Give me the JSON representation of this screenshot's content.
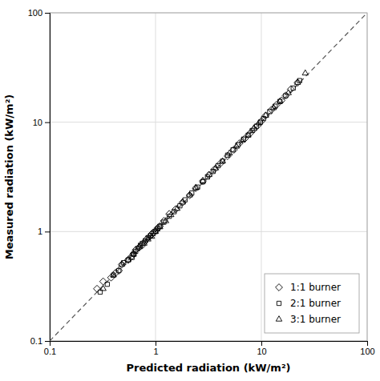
{
  "chart_data": {
    "type": "scatter",
    "xlabel": "Predicted radiation (kW/m²)",
    "ylabel": "Measured radiation (kW/m²)",
    "xlim": [
      0.1,
      100
    ],
    "ylim": [
      0.1,
      100
    ],
    "xticks": [
      0.1,
      1,
      10,
      100
    ],
    "yticks": [
      0.1,
      1,
      10,
      100
    ],
    "log": true,
    "grid": true,
    "legend": "lower right",
    "reference_line": {
      "x": [
        0.1,
        100
      ],
      "y": [
        0.1,
        100
      ],
      "line_style": "dashed",
      "color": "#555555"
    },
    "series": [
      {
        "name": "1:1 burner",
        "color": "black",
        "marker": "diamond",
        "x": [
          0.28,
          0.32,
          0.38,
          0.42,
          0.45,
          0.48,
          0.55,
          0.6,
          0.62,
          0.65,
          0.7,
          0.75,
          0.78,
          0.82,
          0.88,
          0.92,
          0.95,
          1.0,
          1.05,
          1.1,
          1.2,
          1.35,
          1.55,
          1.8,
          2.1,
          2.4,
          2.8,
          3.2,
          3.6,
          4.1,
          4.8,
          5.5,
          6.2,
          7.0,
          7.8,
          8.5,
          9.2,
          10.0,
          11.0,
          12.5,
          14.0,
          15.5,
          17.0,
          19.0,
          22.0
        ],
        "values": [
          0.3,
          0.35,
          0.38,
          0.42,
          0.44,
          0.5,
          0.55,
          0.6,
          0.63,
          0.68,
          0.72,
          0.75,
          0.8,
          0.85,
          0.9,
          0.95,
          0.98,
          1.02,
          1.08,
          1.12,
          1.25,
          1.45,
          1.6,
          1.85,
          2.15,
          2.5,
          2.9,
          3.3,
          3.7,
          4.2,
          4.9,
          5.6,
          6.4,
          7.1,
          7.9,
          8.6,
          9.3,
          10.2,
          11.5,
          13.0,
          14.5,
          15.8,
          17.5,
          20.0,
          23.0
        ]
      },
      {
        "name": "2:1 burner",
        "color": "black",
        "marker": "square",
        "x": [
          0.3,
          0.35,
          0.4,
          0.45,
          0.5,
          0.55,
          0.6,
          0.62,
          0.65,
          0.68,
          0.72,
          0.75,
          0.8,
          0.85,
          0.9,
          0.95,
          1.0,
          1.05,
          1.1,
          1.2,
          1.35,
          1.5,
          1.7,
          1.9,
          2.2,
          2.5,
          2.8,
          3.1,
          3.5,
          3.9,
          4.3,
          4.8,
          5.4,
          6.0,
          6.8,
          7.5,
          8.2,
          9.0,
          9.8,
          10.5,
          12.0,
          13.5,
          15.0,
          17.0,
          20.0,
          23.0
        ],
        "values": [
          0.28,
          0.33,
          0.4,
          0.44,
          0.52,
          0.55,
          0.58,
          0.62,
          0.66,
          0.7,
          0.75,
          0.78,
          0.82,
          0.88,
          0.92,
          0.96,
          1.0,
          1.06,
          1.12,
          1.22,
          1.38,
          1.52,
          1.72,
          1.95,
          2.25,
          2.55,
          2.85,
          3.15,
          3.55,
          4.0,
          4.4,
          5.0,
          5.6,
          6.2,
          7.0,
          7.6,
          8.4,
          9.2,
          10.0,
          10.8,
          12.5,
          14.0,
          15.5,
          17.5,
          20.5,
          24.0
        ]
      },
      {
        "name": "3:1 burner",
        "color": "black",
        "marker": "triangle",
        "x": [
          0.32,
          0.4,
          0.48,
          0.55,
          0.62,
          0.7,
          0.78,
          0.85,
          0.92,
          1.0,
          1.1,
          1.25,
          1.4,
          1.6,
          1.8,
          2.1,
          2.4,
          2.8,
          3.2,
          3.7,
          4.3,
          5.0,
          5.8,
          6.6,
          7.5,
          8.5,
          9.5,
          11.0,
          13.0,
          15.0,
          18.0,
          22.0,
          26.0
        ],
        "values": [
          0.3,
          0.4,
          0.5,
          0.55,
          0.62,
          0.72,
          0.78,
          0.85,
          0.9,
          1.0,
          1.1,
          1.25,
          1.42,
          1.62,
          1.85,
          2.15,
          2.5,
          2.9,
          3.3,
          3.8,
          4.4,
          5.2,
          6.0,
          6.8,
          7.6,
          8.8,
          9.8,
          11.5,
          13.5,
          15.5,
          18.5,
          23.0,
          28.0
        ]
      }
    ]
  }
}
